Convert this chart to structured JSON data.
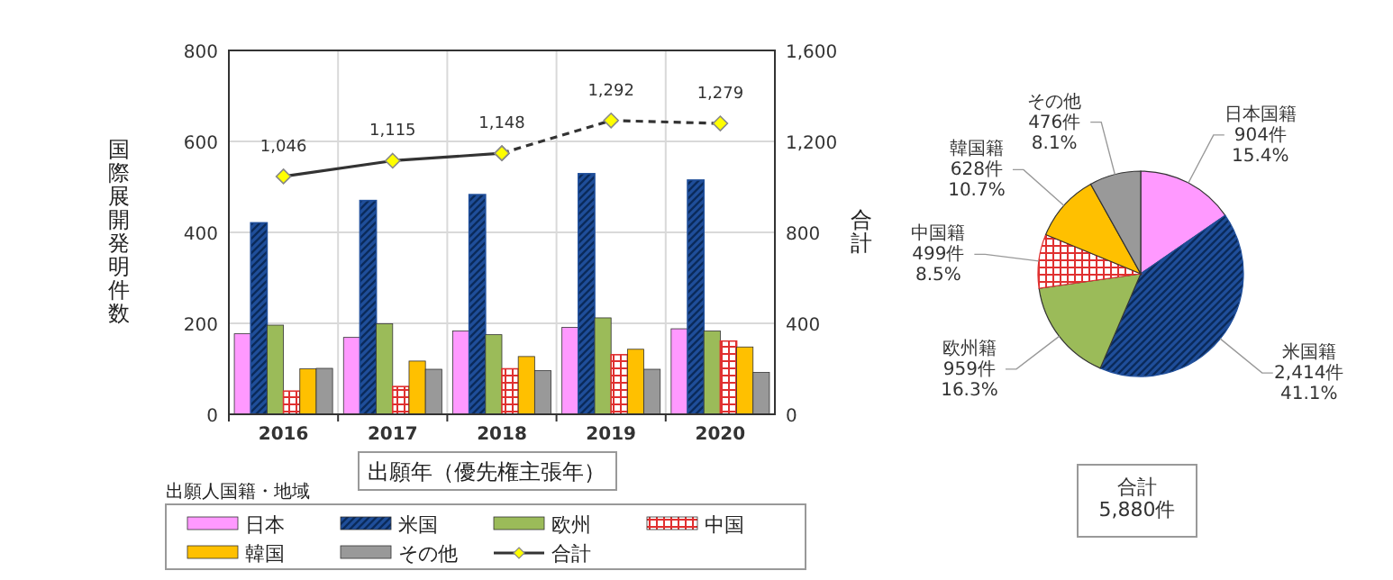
{
  "chart_data": [
    {
      "type": "bar",
      "categories": [
        "2016",
        "2017",
        "2018",
        "2019",
        "2020"
      ],
      "xlabel": "出願年（優先権主張年）",
      "ylabel": "国際展開発明件数",
      "y2label": "合計",
      "legend_title": "出願人国籍・地域",
      "ylim": [
        0,
        800
      ],
      "yticks": [
        0,
        200,
        400,
        600,
        800
      ],
      "y2lim": [
        0,
        1600
      ],
      "y2ticks": [
        0,
        400,
        800,
        {
          "value": 1200,
          "label": "1,200"
        },
        {
          "value": 1600,
          "label": "1,600"
        }
      ],
      "grid": true,
      "legend": "bottom",
      "series": [
        {
          "name": "日本",
          "color": "#ff99ff",
          "values": [
            177,
            169,
            183,
            191,
            188
          ]
        },
        {
          "name": "米国",
          "color": "#1f4e9a",
          "values": [
            421,
            470,
            483,
            529,
            515
          ]
        },
        {
          "name": "欧州",
          "color": "#9bbb59",
          "values": [
            196,
            199,
            175,
            212,
            183
          ]
        },
        {
          "name": "中国",
          "color": "#e03030",
          "values": [
            51,
            61,
            100,
            131,
            161
          ]
        },
        {
          "name": "韓国",
          "color": "#ffc000",
          "values": [
            100,
            117,
            127,
            143,
            148
          ]
        },
        {
          "name": "その他",
          "color": "#999999",
          "values": [
            101,
            99,
            96,
            99,
            92
          ]
        },
        {
          "name": "合計",
          "type": "line",
          "axis": "y2",
          "color": "#333333",
          "marker": "diamond",
          "line_style": "solid",
          "values": [
            1046,
            1115,
            1148,
            null,
            null
          ],
          "value_labels": [
            "1,046",
            "1,115",
            "1,148",
            null,
            null
          ]
        },
        {
          "type": "line",
          "axis": "y2",
          "color": "#333333",
          "marker": "diamond",
          "line_style": "dashed",
          "values": [
            null,
            null,
            1148,
            1292,
            1279
          ],
          "value_labels": [
            null,
            null,
            null,
            "1,292",
            "1,279"
          ]
        }
      ]
    },
    {
      "type": "pie",
      "categories": [
        "日本国籍",
        "米国籍",
        "欧州籍",
        "中国籍",
        "韓国籍",
        "その他"
      ],
      "values": [
        904,
        2414,
        959,
        499,
        628,
        476
      ],
      "value_labels": [
        "904件\n15.4%",
        "2,414件\n41.1%",
        "959件\n16.3%",
        "499件\n8.5%",
        "628件\n10.7%",
        "476件\n8.1%"
      ],
      "colors": [
        "#ff99ff",
        "#1f4e9a",
        "#9bbb59",
        "#e03030",
        "#ffc000",
        "#999999"
      ],
      "annotations": [
        "合計\n5,880件"
      ]
    }
  ]
}
